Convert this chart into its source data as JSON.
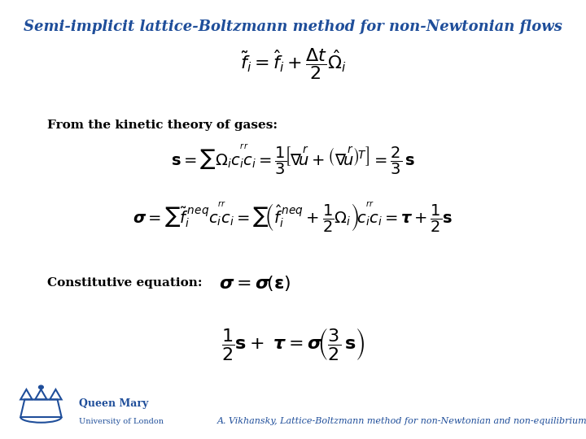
{
  "title": "Semi-implicit lattice-Boltzmann method for non-Newtonian flows",
  "title_color": "#1F4E9A",
  "title_fontsize": 13,
  "bg_color": "#FFFFFF",
  "label_kinetic": "From the kinetic theory of gases:",
  "label_constitutive": "Constitutive equation:",
  "footer": "A. Vikhansky, Lattice-Boltzmann method for non-Newtonian and non-equilibrium flows",
  "footer_color": "#1F4E9A",
  "logo_color": "#1F4E9A",
  "math_color": "black"
}
